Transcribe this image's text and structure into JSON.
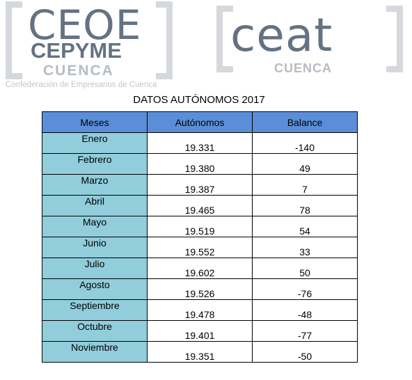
{
  "logos": {
    "ceoe": {
      "main": "CEOE",
      "sub": "CEPYME",
      "city": "CUENCA",
      "caption": "Confederación de Empresarios de Cuenca"
    },
    "ceat": {
      "main": "ceat",
      "city": "CUENCA"
    }
  },
  "table": {
    "title": "DATOS AUTÓNOMOS 2017",
    "headers": [
      "Meses",
      "Autónomos",
      "Balance"
    ],
    "rows": [
      {
        "month": "Enero",
        "value": "19.331",
        "balance": "-140"
      },
      {
        "month": "Febrero",
        "value": "19.380",
        "balance": "49"
      },
      {
        "month": "Marzo",
        "value": "19.387",
        "balance": "7"
      },
      {
        "month": "Abril",
        "value": "19.465",
        "balance": "78"
      },
      {
        "month": "Mayo",
        "value": "19.519",
        "balance": "54"
      },
      {
        "month": "Junio",
        "value": "19.552",
        "balance": "33"
      },
      {
        "month": "Julio",
        "value": "19.602",
        "balance": "50"
      },
      {
        "month": "Agosto",
        "value": "19.526",
        "balance": "-76"
      },
      {
        "month": "Septiembre",
        "value": "19.478",
        "balance": "-48"
      },
      {
        "month": "Octubre",
        "value": "19.401",
        "balance": "-77"
      },
      {
        "month": "Noviembre",
        "value": "19.351",
        "balance": "-50"
      }
    ]
  },
  "colors": {
    "header_bg": "#5b8ed8",
    "month_bg": "#92cddc",
    "logo_dark": "#647283",
    "logo_light": "#b7bcc2"
  }
}
